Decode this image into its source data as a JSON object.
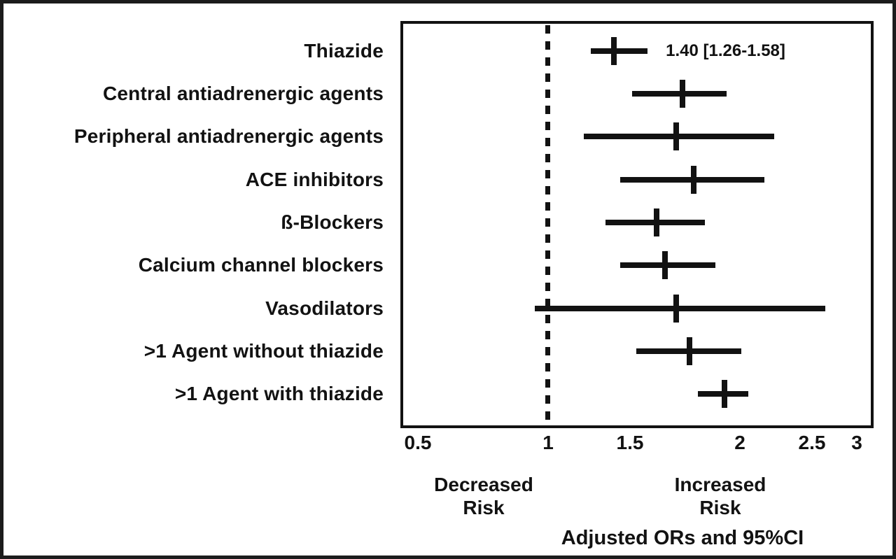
{
  "chart_data": {
    "type": "scatter",
    "subtype": "forest-plot",
    "title": "",
    "xlabel": "Adjusted ORs and 95%CI",
    "x_ticks": [
      0.5,
      1,
      1.5,
      2,
      2.5,
      3
    ],
    "x_tick_labels": [
      "0.5",
      "1",
      "1.5",
      "2",
      "2.5",
      "3"
    ],
    "xlim": [
      0.43,
      3.15
    ],
    "reference_line_x": 1,
    "reference_line_style": "dotted",
    "legend": "none",
    "grid": false,
    "region_label_left": "Decreased\nRisk",
    "region_label_right": "Increased\nRisk",
    "colors": {
      "ink": "#121212",
      "background": "#ffffff"
    },
    "rows": [
      {
        "label": "Thiazide",
        "or": 1.4,
        "ci_low": 1.26,
        "ci_high": 1.58,
        "annotation": "1.40 [1.26-1.58]"
      },
      {
        "label": "Central antiadrenergic agents",
        "or": 1.74,
        "ci_low": 1.51,
        "ci_high": 1.94
      },
      {
        "label": "Peripheral antiadrenergic agents",
        "or": 1.71,
        "ci_low": 1.22,
        "ci_high": 2.24
      },
      {
        "label": "ACE inhibitors",
        "or": 1.79,
        "ci_low": 1.44,
        "ci_high": 2.17
      },
      {
        "label": "ß-Blockers",
        "or": 1.62,
        "ci_low": 1.35,
        "ci_high": 1.84
      },
      {
        "label": "Calcium channel blockers",
        "or": 1.66,
        "ci_low": 1.44,
        "ci_high": 1.89
      },
      {
        "label": "Vasodilators",
        "or": 1.71,
        "ci_low": 0.95,
        "ci_high": 2.65
      },
      {
        "label": ">1 Agent without thiazide",
        "or": 1.77,
        "ci_low": 1.53,
        "ci_high": 2.01
      },
      {
        "label": ">1 Agent with thiazide",
        "or": 1.93,
        "ci_low": 1.81,
        "ci_high": 2.06
      }
    ]
  }
}
